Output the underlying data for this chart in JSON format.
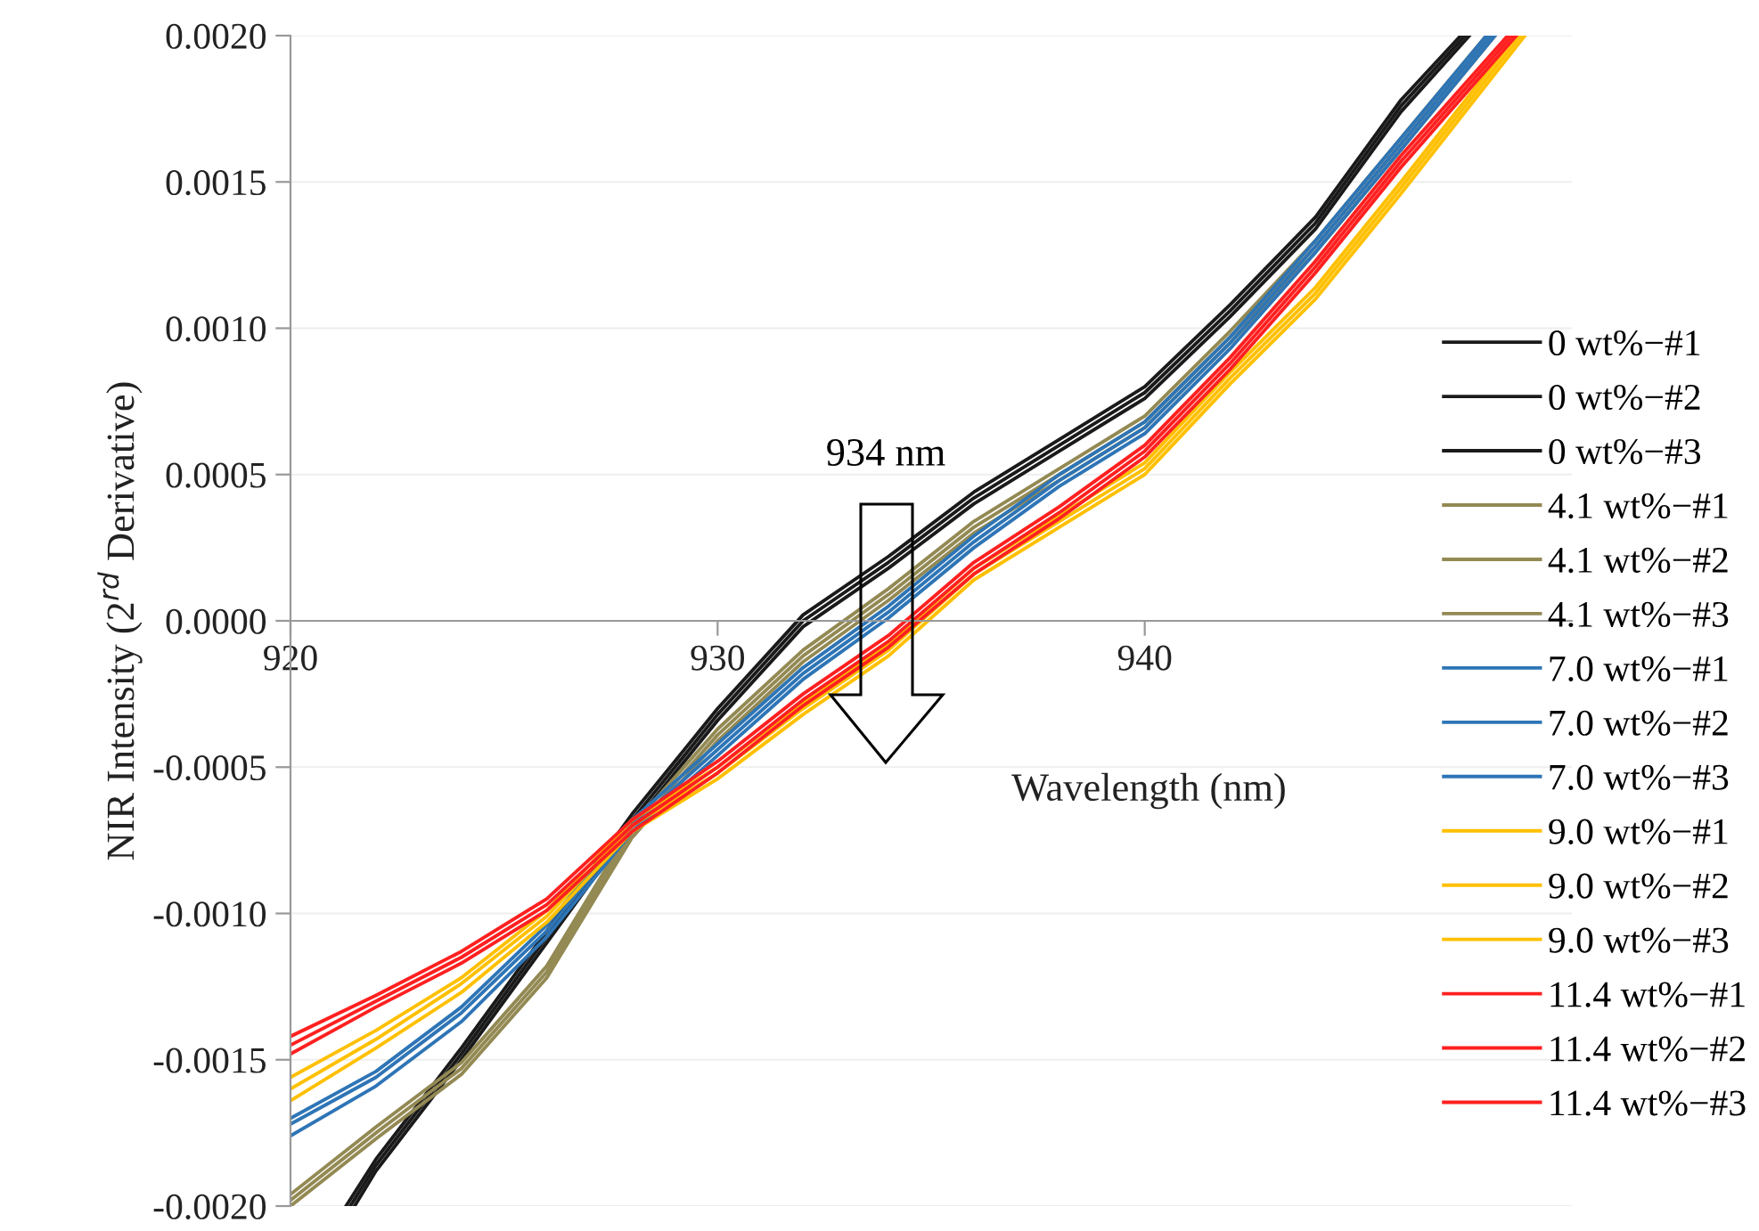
{
  "chart_data": {
    "type": "line",
    "xlabel": "Wavelength (nm)",
    "ylabel": "NIR Intensity (2$^{rd}$ Derivative)",
    "xlim": [
      920,
      950
    ],
    "xticks": [
      920,
      930,
      940
    ],
    "ylim": [
      -0.002,
      0.002
    ],
    "yticks": [
      {
        "value": -0.002,
        "label": "-0.0020"
      },
      {
        "value": -0.0015,
        "label": "-0.0015"
      },
      {
        "value": -0.001,
        "label": "-0.0010"
      },
      {
        "value": -0.0005,
        "label": "-0.0005"
      },
      {
        "value": 0,
        "label": "0.0000"
      },
      {
        "value": 0.0005,
        "label": "0.0005"
      },
      {
        "value": 0.001,
        "label": "0.0010"
      },
      {
        "value": 0.0015,
        "label": "0.0015"
      },
      {
        "value": 0.002,
        "label": "0.0020"
      }
    ],
    "grid": "y",
    "legend": "right",
    "marker": "none",
    "line_style": "solid",
    "annotations": [
      "934 nm"
    ],
    "series": [
      {
        "name": "0 wt%−#1",
        "color": "#1a1a1a",
        "x": [
          921.3,
          922,
          924,
          926,
          928,
          930,
          932,
          934,
          936,
          938,
          940,
          942,
          944,
          946,
          947.4
        ],
        "values": [
          -0.002,
          -0.00184,
          -0.00146,
          -0.00106,
          -0.00066,
          -0.0003,
          2e-05,
          0.00022,
          0.00044,
          0.00062,
          0.0008,
          0.00108,
          0.00138,
          0.00178,
          0.002
        ]
      },
      {
        "name": "0 wt%−#2",
        "color": "#1a1a1a",
        "x": [
          921.4,
          922,
          924,
          926,
          928,
          930,
          932,
          934,
          936,
          938,
          940,
          942,
          944,
          946,
          947.5
        ],
        "values": [
          -0.002,
          -0.00186,
          -0.00148,
          -0.00108,
          -0.00068,
          -0.00032,
          0.0,
          0.0002,
          0.00042,
          0.0006,
          0.00078,
          0.00106,
          0.00136,
          0.00176,
          0.002
        ]
      },
      {
        "name": "0 wt%−#3",
        "color": "#1a1a1a",
        "x": [
          921.5,
          922,
          924,
          926,
          928,
          930,
          932,
          934,
          936,
          938,
          940,
          942,
          944,
          946,
          947.6
        ],
        "values": [
          -0.002,
          -0.00188,
          -0.0015,
          -0.0011,
          -0.0007,
          -0.00034,
          -2e-05,
          0.00018,
          0.0004,
          0.00058,
          0.00076,
          0.00104,
          0.00134,
          0.00174,
          0.002
        ]
      },
      {
        "name": "4.1 wt%−#1",
        "color": "#938953",
        "x": [
          920,
          922,
          924,
          926,
          928,
          930,
          932,
          934,
          936,
          938,
          940,
          942,
          944,
          946,
          948
        ],
        "values": [
          -0.00196,
          -0.00173,
          -0.00151,
          -0.00118,
          -0.0007,
          -0.00037,
          -0.0001,
          0.00011,
          0.00034,
          0.00052,
          0.0007,
          0.00099,
          0.0013,
          0.00165,
          0.002
        ]
      },
      {
        "name": "4.1 wt%−#2",
        "color": "#938953",
        "x": [
          920,
          922,
          924,
          926,
          928,
          930,
          932,
          934,
          936,
          938,
          940,
          942,
          944,
          946,
          948.1
        ],
        "values": [
          -0.00198,
          -0.00175,
          -0.00153,
          -0.0012,
          -0.00072,
          -0.00039,
          -0.00012,
          9e-05,
          0.00032,
          0.0005,
          0.00068,
          0.00097,
          0.00128,
          0.00163,
          0.002
        ]
      },
      {
        "name": "4.1 wt%−#3",
        "color": "#938953",
        "x": [
          920,
          922,
          924,
          926,
          928,
          930,
          932,
          934,
          936,
          938,
          940,
          942,
          944,
          946,
          948.2
        ],
        "values": [
          -0.002,
          -0.00177,
          -0.00155,
          -0.00122,
          -0.00074,
          -0.00041,
          -0.00014,
          7e-05,
          0.0003,
          0.00048,
          0.00066,
          0.00095,
          0.00126,
          0.00161,
          0.002
        ]
      },
      {
        "name": "7.0 wt%−#1",
        "color": "#2e75b6",
        "x": [
          920,
          922,
          924,
          926,
          928,
          930,
          932,
          934,
          936,
          938,
          940,
          942,
          944,
          946,
          948
        ],
        "values": [
          -0.0017,
          -0.00154,
          -0.00132,
          -0.00104,
          -0.00068,
          -0.00042,
          -0.00016,
          5e-05,
          0.00029,
          0.0005,
          0.00068,
          0.00097,
          0.0013,
          0.00165,
          0.002
        ]
      },
      {
        "name": "7.0 wt%−#2",
        "color": "#2e75b6",
        "x": [
          920,
          922,
          924,
          926,
          928,
          930,
          932,
          934,
          936,
          938,
          940,
          942,
          944,
          946,
          948.1
        ],
        "values": [
          -0.00172,
          -0.00156,
          -0.00134,
          -0.00106,
          -0.0007,
          -0.00044,
          -0.00018,
          3e-05,
          0.00027,
          0.00048,
          0.00066,
          0.00095,
          0.00128,
          0.00163,
          0.002
        ]
      },
      {
        "name": "7.0 wt%−#3",
        "color": "#2e75b6",
        "x": [
          920,
          922,
          924,
          926,
          928,
          930,
          932,
          934,
          936,
          938,
          940,
          942,
          944,
          946,
          948.2
        ],
        "values": [
          -0.00176,
          -0.00159,
          -0.00137,
          -0.00108,
          -0.00072,
          -0.00046,
          -0.0002,
          1e-05,
          0.00025,
          0.00046,
          0.00064,
          0.00093,
          0.00126,
          0.00161,
          0.002
        ]
      },
      {
        "name": "9.0 wt%−#1",
        "color": "#ffc000",
        "x": [
          920,
          922,
          924,
          926,
          928,
          930,
          932,
          934,
          936,
          938,
          940,
          942,
          944,
          946,
          948.7
        ],
        "values": [
          -0.00156,
          -0.0014,
          -0.00122,
          -0.00099,
          -0.00068,
          -0.0005,
          -0.00028,
          -8e-05,
          0.00018,
          0.00036,
          0.00054,
          0.00085,
          0.00114,
          0.0015,
          0.002
        ]
      },
      {
        "name": "9.0 wt%−#2",
        "color": "#ffc000",
        "x": [
          920,
          922,
          924,
          926,
          928,
          930,
          932,
          934,
          936,
          938,
          940,
          942,
          944,
          946,
          948.8
        ],
        "values": [
          -0.0016,
          -0.00143,
          -0.00124,
          -0.00101,
          -0.0007,
          -0.00052,
          -0.0003,
          -0.0001,
          0.00016,
          0.00034,
          0.00052,
          0.00083,
          0.00112,
          0.00148,
          0.002
        ]
      },
      {
        "name": "9.0 wt%−#3",
        "color": "#ffc000",
        "x": [
          920,
          922,
          924,
          926,
          928,
          930,
          932,
          934,
          936,
          938,
          940,
          942,
          944,
          946,
          948.9
        ],
        "values": [
          -0.00164,
          -0.00146,
          -0.00127,
          -0.00103,
          -0.00072,
          -0.00054,
          -0.00032,
          -0.00012,
          0.00014,
          0.00032,
          0.0005,
          0.00081,
          0.0011,
          0.00146,
          0.002
        ]
      },
      {
        "name": "11.4 wt%−#1",
        "color": "#ff2020",
        "x": [
          920,
          922,
          924,
          926,
          928,
          930,
          932,
          934,
          936,
          938,
          940,
          942,
          944,
          946,
          948.5
        ],
        "values": [
          -0.00142,
          -0.00128,
          -0.00113,
          -0.00095,
          -0.00068,
          -0.00048,
          -0.00025,
          -5e-05,
          0.0002,
          0.00039,
          0.0006,
          0.0009,
          0.00123,
          0.00159,
          0.002
        ]
      },
      {
        "name": "11.4 wt%−#2",
        "color": "#ff2020",
        "x": [
          920,
          922,
          924,
          926,
          928,
          930,
          932,
          934,
          936,
          938,
          940,
          942,
          944,
          946,
          948.6
        ],
        "values": [
          -0.00145,
          -0.0013,
          -0.00115,
          -0.00097,
          -0.0007,
          -0.0005,
          -0.00027,
          -7e-05,
          0.00018,
          0.00037,
          0.00058,
          0.00088,
          0.00121,
          0.00157,
          0.002
        ]
      },
      {
        "name": "11.4 wt%−#3",
        "color": "#ff2020",
        "x": [
          920,
          922,
          924,
          926,
          928,
          930,
          932,
          934,
          936,
          938,
          940,
          942,
          944,
          946,
          948.7
        ],
        "values": [
          -0.00148,
          -0.00132,
          -0.00117,
          -0.00099,
          -0.00072,
          -0.00052,
          -0.00029,
          -9e-05,
          0.00016,
          0.00035,
          0.00056,
          0.00086,
          0.00119,
          0.00155,
          0.002
        ]
      }
    ]
  }
}
